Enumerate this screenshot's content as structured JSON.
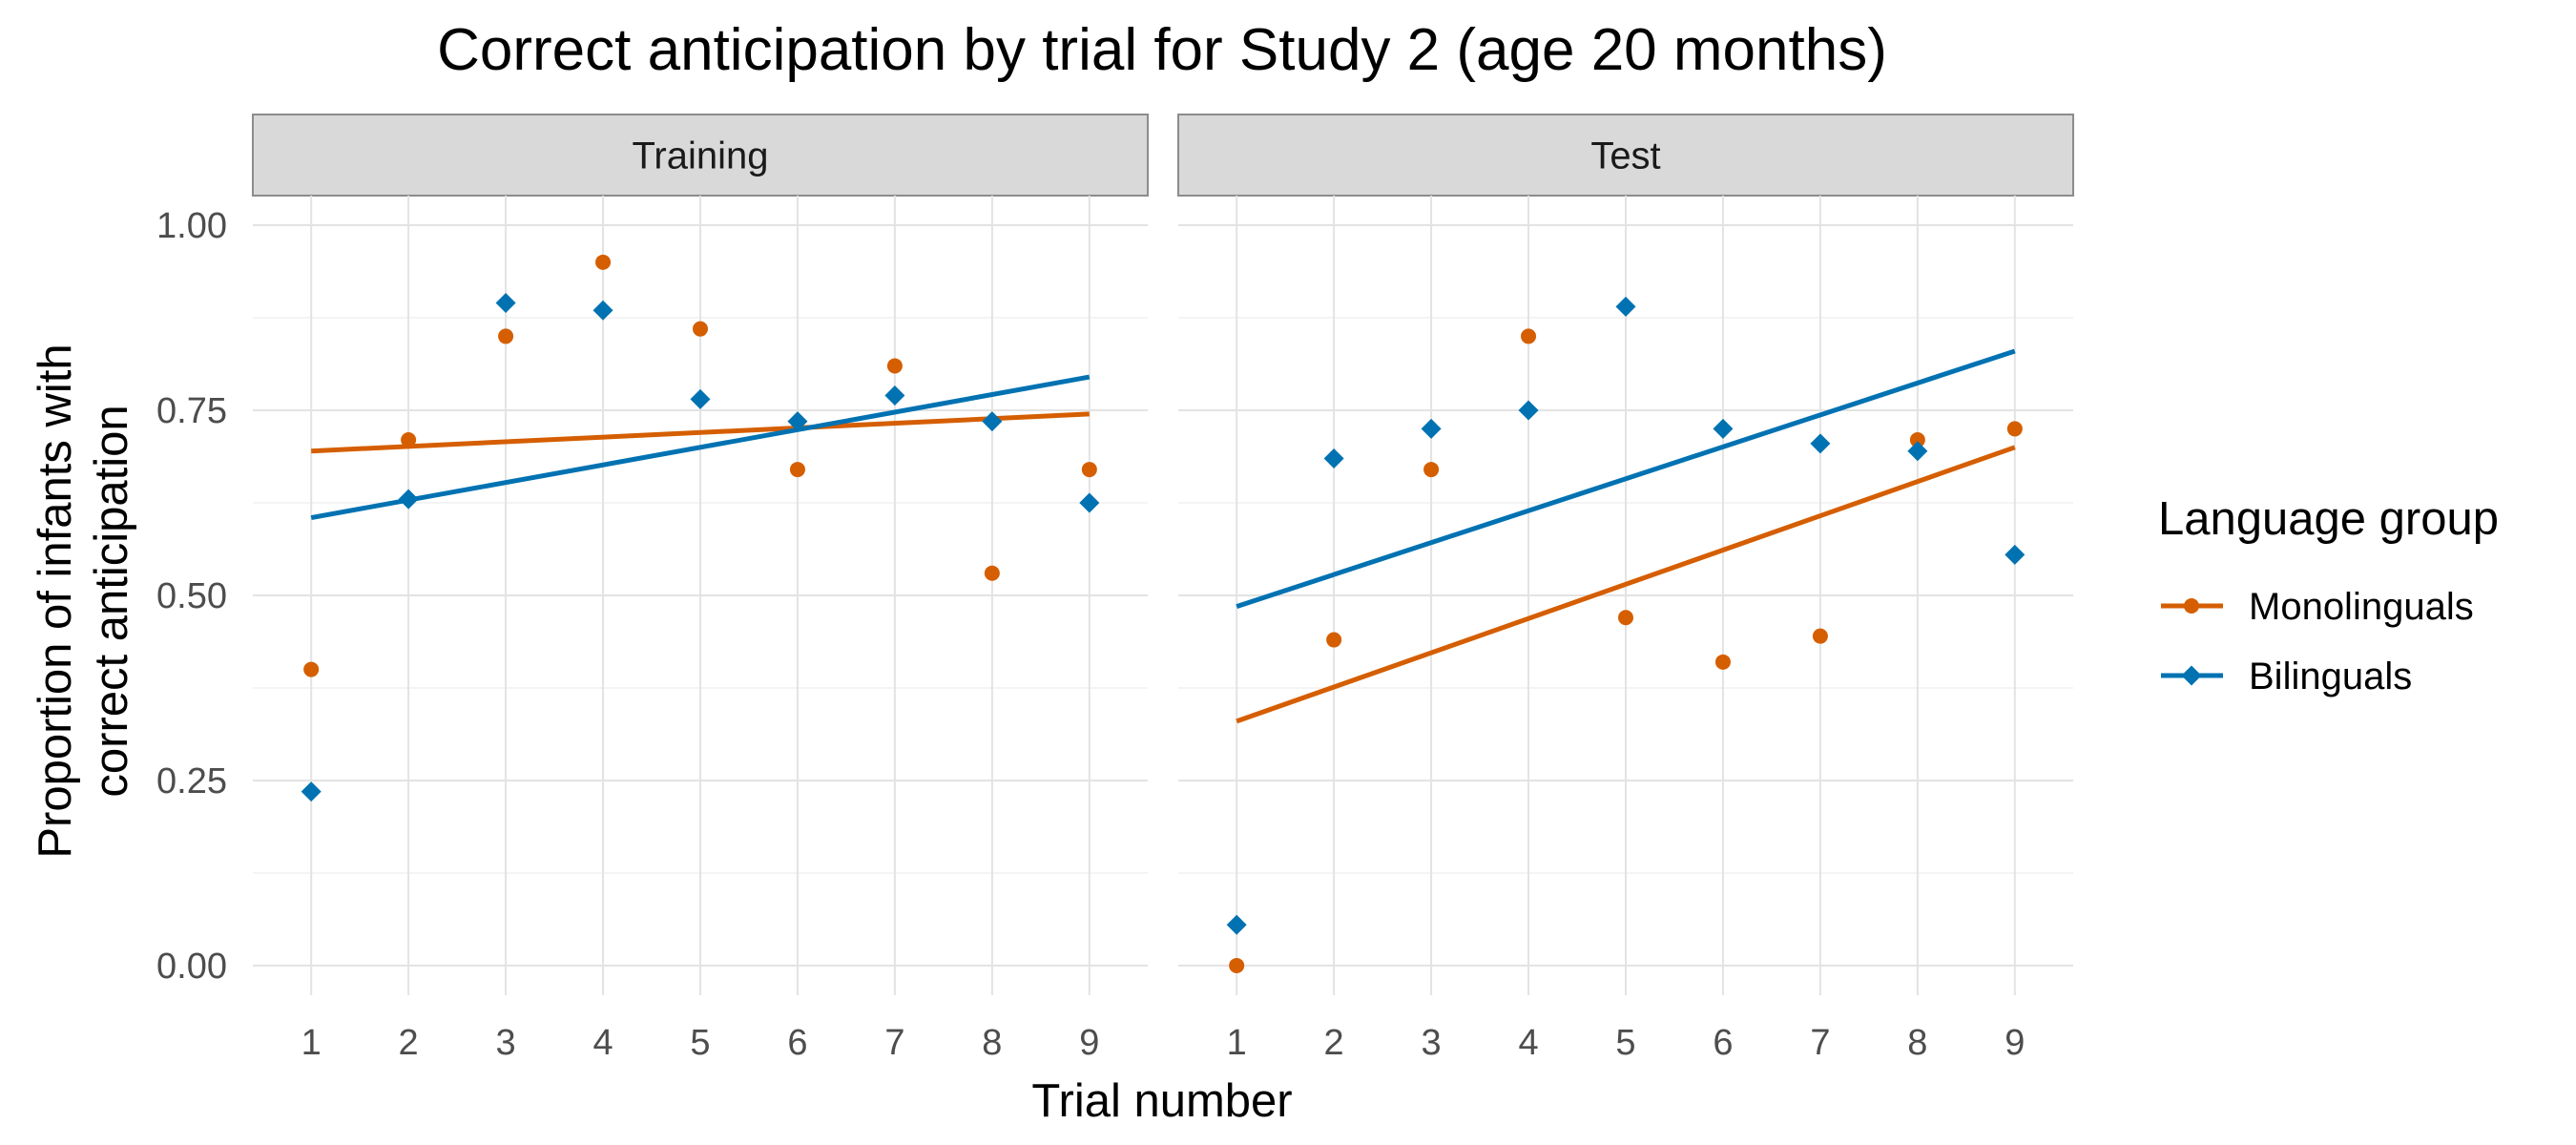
{
  "chart_data": {
    "type": "scatter",
    "title": "Correct anticipation by trial for Study 2 (age 20  months)",
    "xlabel": "Trial number",
    "ylabel_lines": [
      "Proportion of infants with",
      "correct anticipation"
    ],
    "x_ticks": [
      "1",
      "2",
      "3",
      "4",
      "5",
      "6",
      "7",
      "8",
      "9"
    ],
    "y_ticks": [
      "0.00",
      "0.25",
      "0.50",
      "0.75",
      "1.00"
    ],
    "xlim": [
      0.4,
      9.6
    ],
    "ylim": [
      -0.04,
      1.04
    ],
    "grid": true,
    "legend": {
      "title": "Language group",
      "placement": "right",
      "entries": [
        {
          "name": "Monolinguals",
          "color": "#D55E00",
          "marker": "circle"
        },
        {
          "name": "Bilinguals",
          "color": "#0072B2",
          "marker": "diamond"
        }
      ]
    },
    "panels": [
      {
        "label": "Training",
        "series": [
          {
            "name": "Monolinguals",
            "color": "#D55E00",
            "marker": "circle",
            "x": [
              1,
              2,
              3,
              4,
              5,
              6,
              7,
              8,
              9
            ],
            "y": [
              0.4,
              0.71,
              0.85,
              0.95,
              0.86,
              0.67,
              0.81,
              0.53,
              0.67
            ],
            "fit": {
              "x": [
                1,
                9
              ],
              "y": [
                0.695,
                0.745
              ]
            }
          },
          {
            "name": "Bilinguals",
            "color": "#0072B2",
            "marker": "diamond",
            "x": [
              1,
              2,
              3,
              4,
              5,
              6,
              7,
              8,
              9
            ],
            "y": [
              0.235,
              0.63,
              0.895,
              0.885,
              0.765,
              0.735,
              0.77,
              0.735,
              0.625
            ],
            "fit": {
              "x": [
                1,
                9
              ],
              "y": [
                0.605,
                0.795
              ]
            }
          }
        ]
      },
      {
        "label": "Test",
        "series": [
          {
            "name": "Monolinguals",
            "color": "#D55E00",
            "marker": "circle",
            "x": [
              1,
              2,
              3,
              4,
              5,
              6,
              7,
              8,
              9
            ],
            "y": [
              0.0,
              0.44,
              0.67,
              0.85,
              0.47,
              0.41,
              0.445,
              0.71,
              0.725
            ],
            "fit": {
              "x": [
                1,
                9
              ],
              "y": [
                0.33,
                0.7
              ]
            }
          },
          {
            "name": "Bilinguals",
            "color": "#0072B2",
            "marker": "diamond",
            "x": [
              1,
              2,
              3,
              4,
              5,
              6,
              7,
              8,
              9
            ],
            "y": [
              0.055,
              0.685,
              0.725,
              0.75,
              0.89,
              0.725,
              0.705,
              0.695,
              0.555
            ],
            "fit": {
              "x": [
                1,
                9
              ],
              "y": [
                0.485,
                0.83
              ]
            }
          }
        ]
      }
    ]
  }
}
